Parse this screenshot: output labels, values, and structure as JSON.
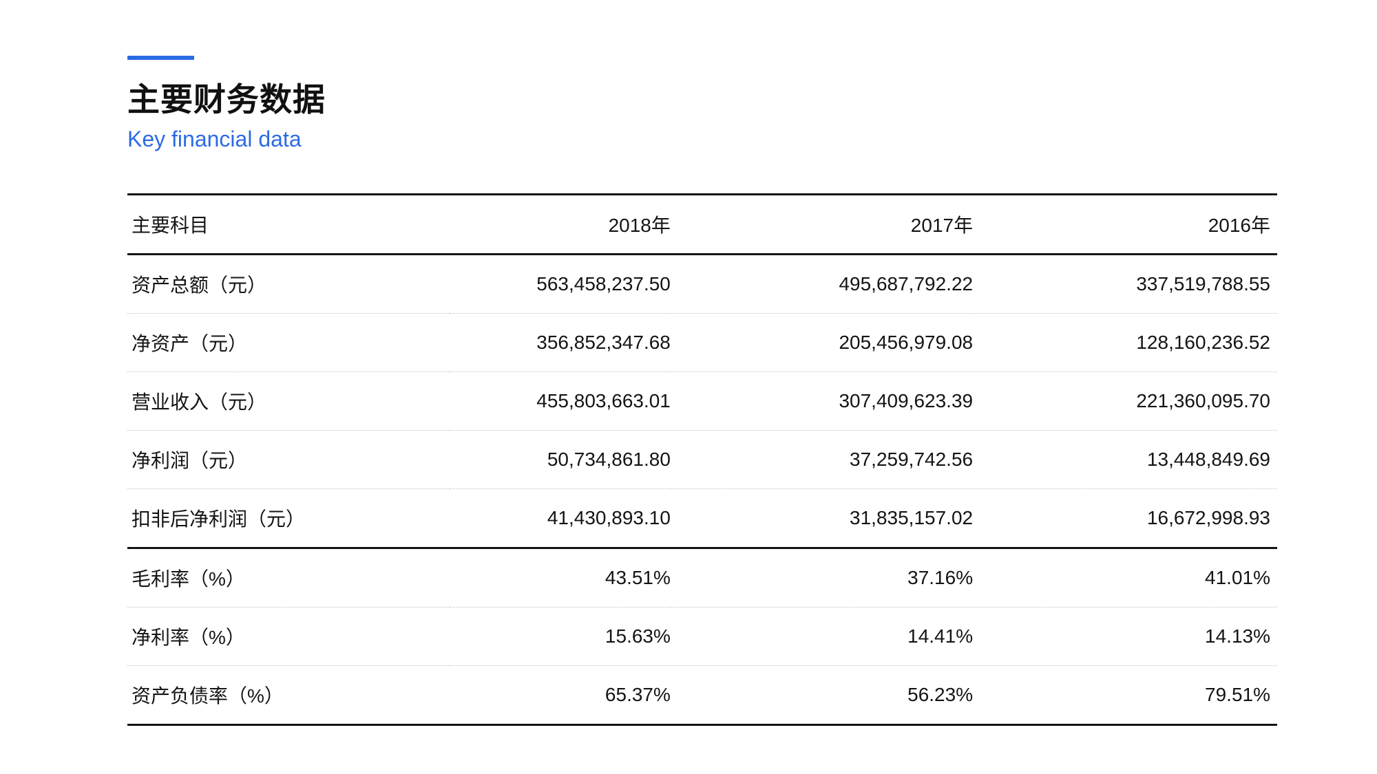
{
  "header": {
    "title": "主要财务数据",
    "subtitle": "Key financial data"
  },
  "colors": {
    "accent_blue": "#2b6be4",
    "text_dark": "#141414",
    "rule_dark": "#141414",
    "rule_dotted": "#c6c6c6"
  },
  "table": {
    "columns": [
      "主要科目",
      "2018年",
      "2017年",
      "2016年"
    ],
    "rows": [
      {
        "label": "资产总额（元）",
        "values": [
          "563,458,237.50",
          "495,687,792.22",
          "337,519,788.55"
        ]
      },
      {
        "label": "净资产（元）",
        "values": [
          "356,852,347.68",
          "205,456,979.08",
          "128,160,236.52"
        ]
      },
      {
        "label": "营业收入（元）",
        "values": [
          "455,803,663.01",
          "307,409,623.39",
          "221,360,095.70"
        ]
      },
      {
        "label": "净利润（元）",
        "values": [
          "50,734,861.80",
          "37,259,742.56",
          "13,448,849.69"
        ]
      },
      {
        "label": "扣非后净利润（元）",
        "values": [
          "41,430,893.10",
          "31,835,157.02",
          "16,672,998.93"
        ]
      },
      {
        "label": "毛利率（%）",
        "values": [
          "43.51%",
          "37.16%",
          "41.01%"
        ]
      },
      {
        "label": "净利率（%）",
        "values": [
          "15.63%",
          "14.41%",
          "14.13%"
        ]
      },
      {
        "label": "资产负债率（%）",
        "values": [
          "65.37%",
          "56.23%",
          "79.51%"
        ]
      }
    ]
  }
}
